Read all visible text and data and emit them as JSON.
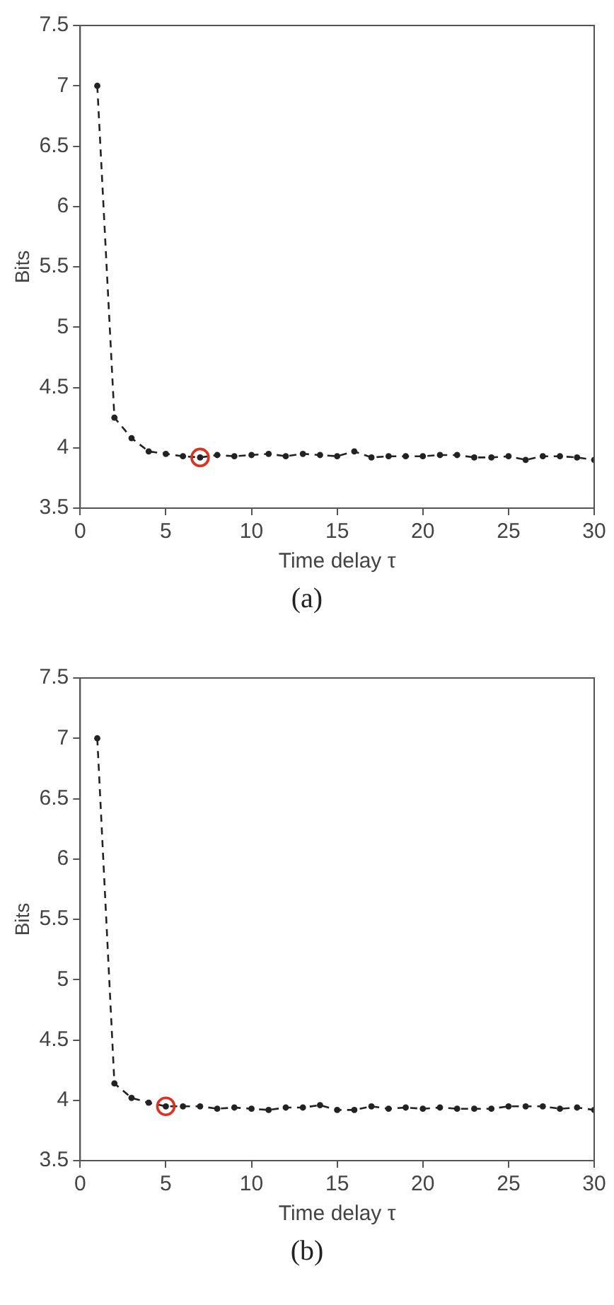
{
  "chart_data": [
    {
      "type": "line",
      "xlabel": "Time delay τ",
      "ylabel": "Bits",
      "xlim": [
        0,
        30
      ],
      "xticks": [
        0,
        5,
        10,
        15,
        20,
        25,
        30
      ],
      "ylim": [
        3.5,
        7.5
      ],
      "yticks": [
        3.5,
        4,
        4.5,
        5,
        5.5,
        6,
        6.5,
        7,
        7.5
      ],
      "grid": false,
      "legend": false,
      "marker": "circle",
      "line_style": "dashed",
      "annotations": [
        "(a)"
      ],
      "series": [
        {
          "color": "#222222",
          "x": [
            1,
            2,
            3,
            4,
            5,
            6,
            7,
            8,
            9,
            10,
            11,
            12,
            13,
            14,
            15,
            16,
            17,
            18,
            19,
            20,
            21,
            22,
            23,
            24,
            25,
            26,
            27,
            28,
            29,
            30
          ],
          "values": [
            7.0,
            4.25,
            4.08,
            3.97,
            3.95,
            3.93,
            3.92,
            3.94,
            3.93,
            3.94,
            3.95,
            3.93,
            3.95,
            3.94,
            3.93,
            3.97,
            3.92,
            3.93,
            3.93,
            3.93,
            3.94,
            3.94,
            3.92,
            3.92,
            3.93,
            3.9,
            3.93,
            3.93,
            3.92,
            3.9
          ]
        },
        {
          "type": "scatter",
          "color": "#e0301e",
          "x": [
            7
          ],
          "values": [
            3.92
          ]
        }
      ]
    },
    {
      "type": "line",
      "xlabel": "Time delay τ",
      "ylabel": "Bits",
      "xlim": [
        0,
        30
      ],
      "xticks": [
        0,
        5,
        10,
        15,
        20,
        25,
        30
      ],
      "ylim": [
        3.5,
        7.5
      ],
      "yticks": [
        3.5,
        4,
        4.5,
        5,
        5.5,
        6,
        6.5,
        7,
        7.5
      ],
      "grid": false,
      "legend": false,
      "marker": "circle",
      "line_style": "dashed",
      "annotations": [
        "(b)"
      ],
      "series": [
        {
          "color": "#222222",
          "x": [
            1,
            2,
            3,
            4,
            5,
            6,
            7,
            8,
            9,
            10,
            11,
            12,
            13,
            14,
            15,
            16,
            17,
            18,
            19,
            20,
            21,
            22,
            23,
            24,
            25,
            26,
            27,
            28,
            29,
            30
          ],
          "values": [
            7.0,
            4.14,
            4.02,
            3.98,
            3.95,
            3.95,
            3.95,
            3.93,
            3.94,
            3.93,
            3.92,
            3.94,
            3.94,
            3.96,
            3.92,
            3.92,
            3.95,
            3.93,
            3.94,
            3.93,
            3.94,
            3.93,
            3.93,
            3.93,
            3.95,
            3.95,
            3.95,
            3.93,
            3.94,
            3.92
          ]
        },
        {
          "type": "scatter",
          "color": "#e0301e",
          "x": [
            5
          ],
          "values": [
            3.95
          ]
        }
      ]
    }
  ]
}
